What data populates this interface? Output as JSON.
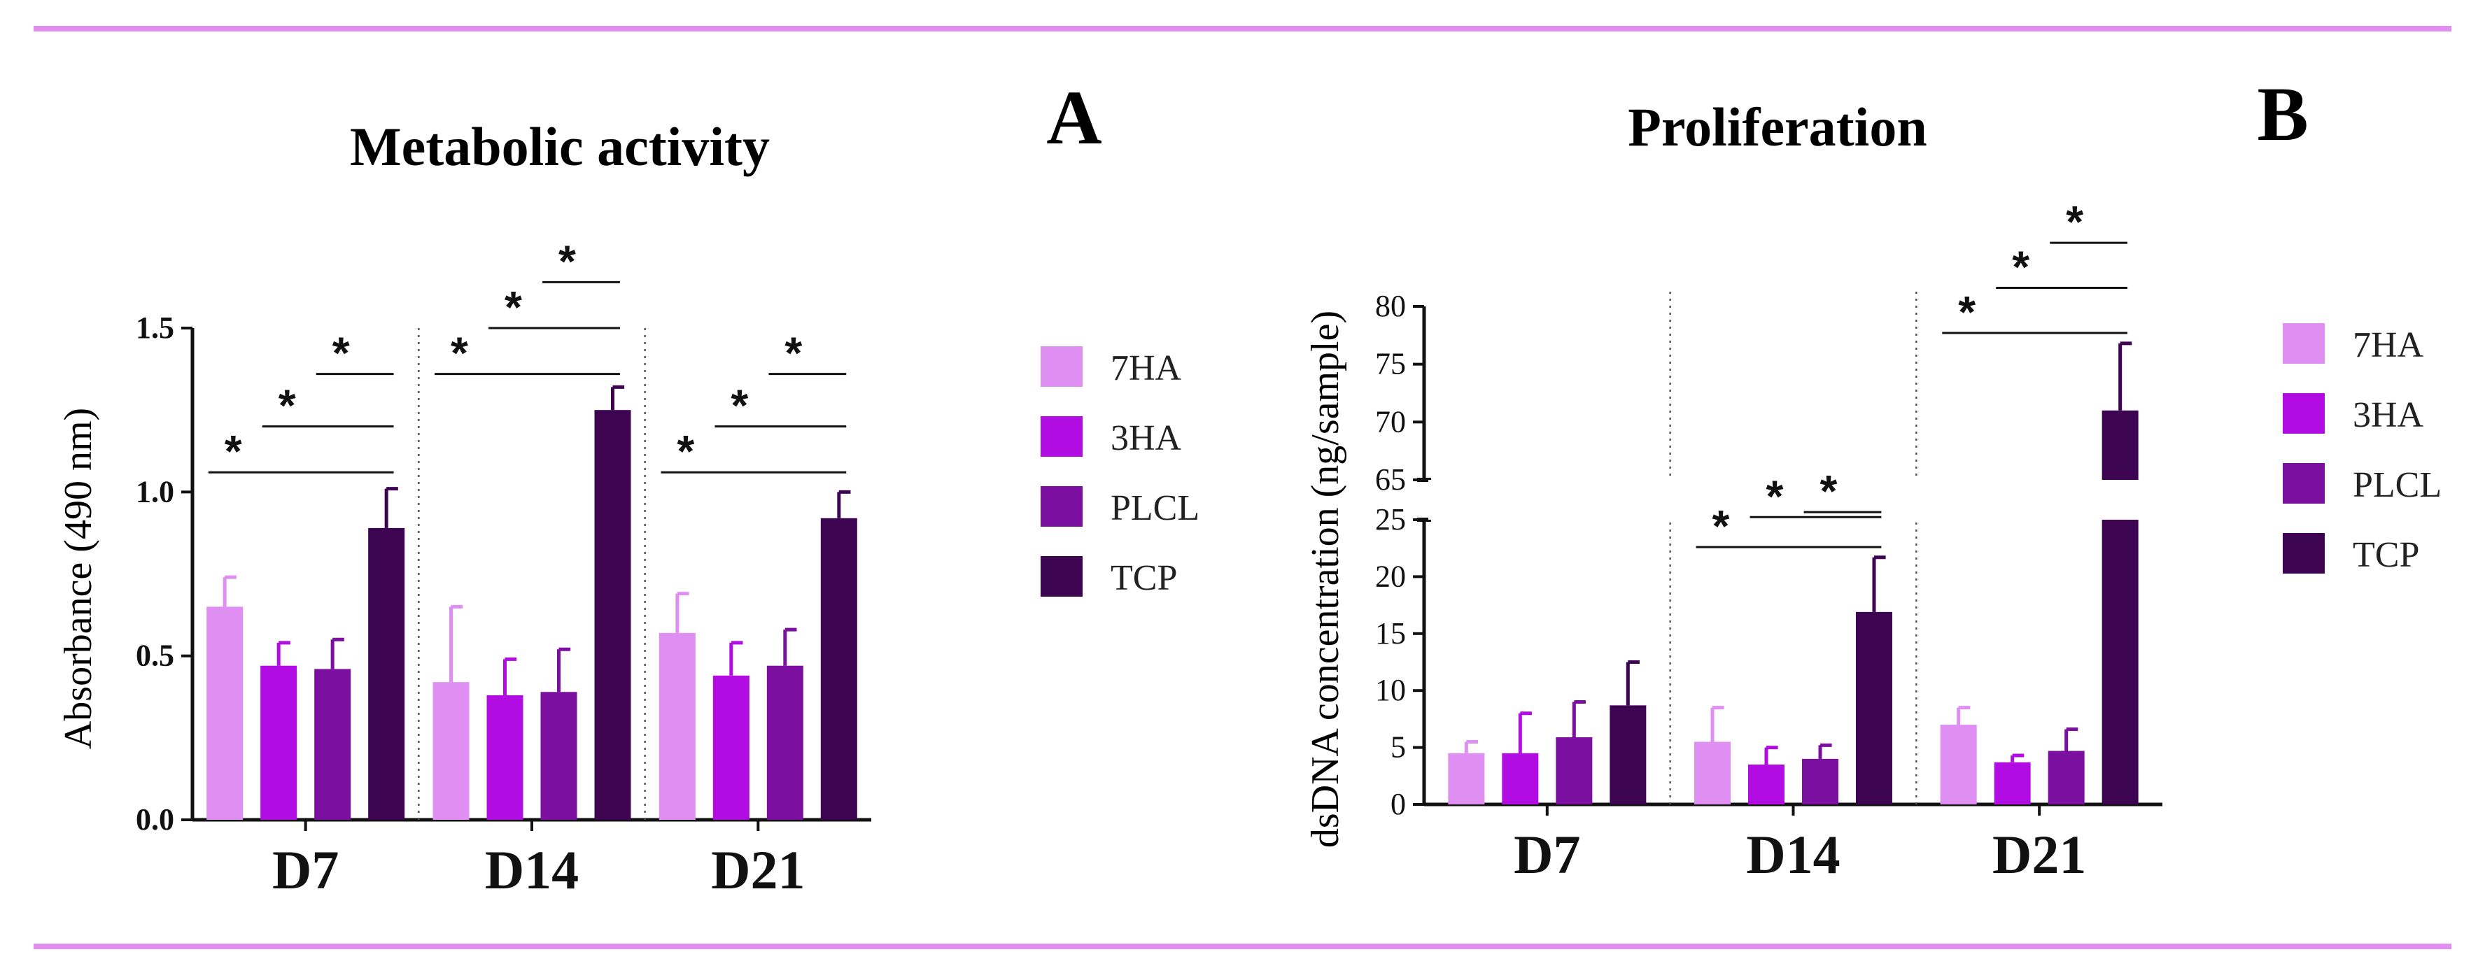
{
  "colors": {
    "rule": "#e28ef0",
    "c7HA": "#df8ff2",
    "c3HA": "#b10de2",
    "cPLCL": "#7a0fa0",
    "cTCP": "#3c0451",
    "axis": "#111111"
  },
  "legend": {
    "items": [
      {
        "label": "7HA",
        "color": "#df8ff2"
      },
      {
        "label": "3HA",
        "color": "#b10de2"
      },
      {
        "label": "PLCL",
        "color": "#7a0fa0"
      },
      {
        "label": "TCP",
        "color": "#3c0451"
      }
    ]
  },
  "chart_data": [
    {
      "type": "bar",
      "panel_letter": "A",
      "title": "Metabolic activity",
      "ylabel": "Absorbance (490 nm)",
      "xlabel": "",
      "ylim": [
        0,
        1.5
      ],
      "yticks": [
        "0.0",
        "0.5",
        "1.0",
        "1.5"
      ],
      "categories": [
        "D7",
        "D14",
        "D21"
      ],
      "series": [
        {
          "name": "7HA",
          "values": [
            0.65,
            0.42,
            0.57
          ],
          "errors": [
            0.09,
            0.23,
            0.12
          ]
        },
        {
          "name": "3HA",
          "values": [
            0.47,
            0.38,
            0.44
          ],
          "errors": [
            0.07,
            0.11,
            0.1
          ]
        },
        {
          "name": "PLCL",
          "values": [
            0.46,
            0.39,
            0.47
          ],
          "errors": [
            0.09,
            0.13,
            0.11
          ]
        },
        {
          "name": "TCP",
          "values": [
            0.89,
            1.25,
            0.92
          ],
          "errors": [
            0.12,
            0.07,
            0.08
          ]
        }
      ],
      "significance": [
        {
          "category": "D7",
          "from_series": "7HA",
          "to_series": "TCP",
          "y": 1.06,
          "label": "*"
        },
        {
          "category": "D7",
          "from_series": "3HA",
          "to_series": "TCP",
          "y": 1.2,
          "label": "*"
        },
        {
          "category": "D7",
          "from_series": "PLCL",
          "to_series": "TCP",
          "y": 1.36,
          "label": "*"
        },
        {
          "category": "D14",
          "from_series": "7HA",
          "to_series": "TCP",
          "y": 1.36,
          "label": "*"
        },
        {
          "category": "D14",
          "from_series": "3HA",
          "to_series": "TCP",
          "y": 1.5,
          "label": "*"
        },
        {
          "category": "D14",
          "from_series": "PLCL",
          "to_series": "TCP",
          "y": 1.64,
          "label": "*"
        },
        {
          "category": "D21",
          "from_series": "7HA",
          "to_series": "TCP",
          "y": 1.06,
          "label": "*"
        },
        {
          "category": "D21",
          "from_series": "3HA",
          "to_series": "TCP",
          "y": 1.2,
          "label": "*"
        },
        {
          "category": "D21",
          "from_series": "PLCL",
          "to_series": "TCP",
          "y": 1.36,
          "label": "*"
        }
      ]
    },
    {
      "type": "bar",
      "panel_letter": "B",
      "title": "Proliferation",
      "ylabel": "dsDNA concentration  (ng/sample)",
      "xlabel": "",
      "ylim": [
        0,
        80
      ],
      "axis_break": [
        25,
        65
      ],
      "yticks_lower": [
        "0",
        "5",
        "10",
        "15",
        "20",
        "25"
      ],
      "yticks_upper": [
        "65",
        "70",
        "75",
        "80"
      ],
      "categories": [
        "D7",
        "D14",
        "D21"
      ],
      "series": [
        {
          "name": "7HA",
          "values": [
            4.5,
            5.5,
            7.0
          ],
          "errors": [
            1.0,
            3.0,
            1.5
          ]
        },
        {
          "name": "3HA",
          "values": [
            4.5,
            3.5,
            3.7
          ],
          "errors": [
            3.5,
            1.5,
            0.6
          ]
        },
        {
          "name": "PLCL",
          "values": [
            5.9,
            4.0,
            4.7
          ],
          "errors": [
            3.1,
            1.2,
            1.9
          ]
        },
        {
          "name": "TCP",
          "values": [
            8.7,
            16.9,
            71.0
          ],
          "errors": [
            3.8,
            4.8,
            5.8
          ]
        }
      ],
      "significance": [
        {
          "category": "D14",
          "from_series": "7HA",
          "to_series": "TCP",
          "y": 22.6,
          "label": "*"
        },
        {
          "category": "D14",
          "from_series": "3HA",
          "to_series": "TCP",
          "y": 27.6,
          "label": "*"
        },
        {
          "category": "D14",
          "from_series": "PLCL",
          "to_series": "TCP",
          "y": 32.6,
          "label": "*"
        },
        {
          "category": "D21",
          "from_series": "7HA",
          "to_series": "TCP",
          "y": 77.7,
          "label": "*"
        },
        {
          "category": "D21",
          "from_series": "3HA",
          "to_series": "TCP",
          "y": 81.6,
          "label": "*"
        },
        {
          "category": "D21",
          "from_series": "PLCL",
          "to_series": "TCP",
          "y": 85.5,
          "label": "*"
        }
      ]
    }
  ]
}
